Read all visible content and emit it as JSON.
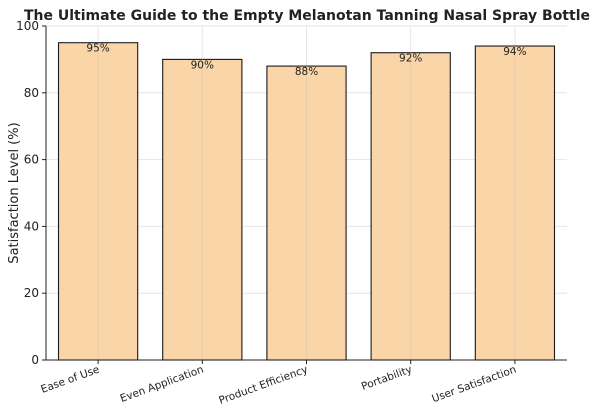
{
  "chart_data": {
    "type": "bar",
    "title": "The Ultimate Guide to the Empty Melanotan Tanning Nasal Spray Bottle",
    "xlabel": "",
    "ylabel": "Satisfaction Level (%)",
    "categories": [
      "Ease of Use",
      "Even Application",
      "Product Efficiency",
      "Portability",
      "User Satisfaction"
    ],
    "values": [
      95,
      90,
      88,
      92,
      94
    ],
    "data_labels": [
      "95%",
      "90%",
      "88%",
      "92%",
      "94%"
    ],
    "ylim": [
      0,
      100
    ],
    "yticks": [
      0,
      20,
      40,
      60,
      80,
      100
    ],
    "grid": true,
    "bar_color": "#f9d5a7",
    "bar_edge_color": "#1a1a1a",
    "grid_color": "#e6e6e6"
  }
}
